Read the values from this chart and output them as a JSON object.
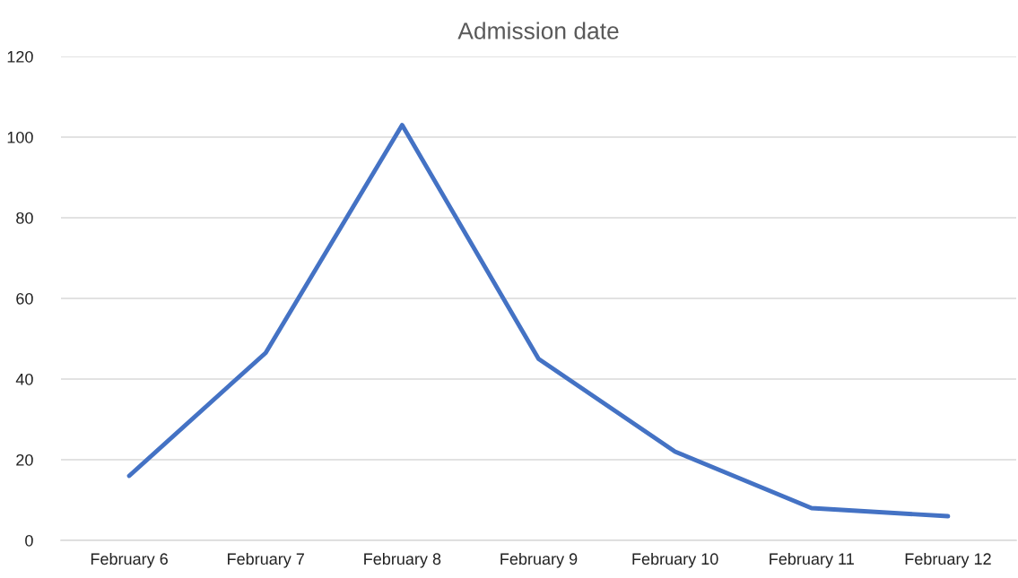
{
  "chart_data": {
    "type": "line",
    "title": "Admission date",
    "categories": [
      "February 6",
      "February 7",
      "February 8",
      "February 9",
      "February 10",
      "February 11",
      "February 12"
    ],
    "series": [
      {
        "color": "#4472c4",
        "values": [
          16,
          46.5,
          103,
          45,
          22,
          8,
          6
        ]
      }
    ],
    "ylim": [
      0,
      120
    ],
    "yticks": [
      0,
      20,
      40,
      60,
      80,
      100,
      120
    ],
    "grid": "y",
    "marker": "none",
    "line_style": "solid"
  }
}
